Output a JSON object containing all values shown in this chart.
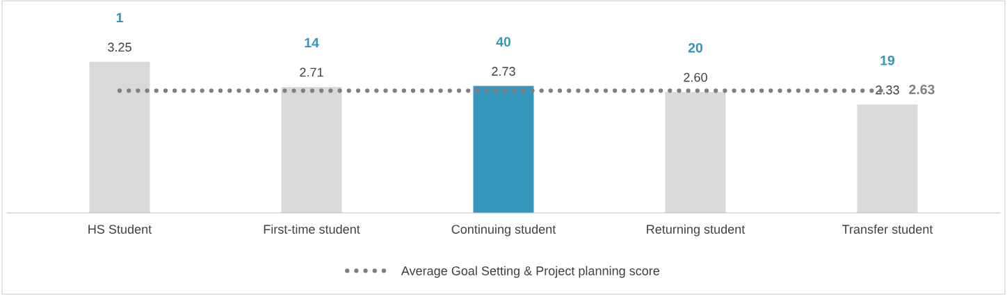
{
  "chart_data": {
    "type": "bar",
    "categories": [
      "HS Student",
      "First-time student",
      "Continuing student",
      "Returning student",
      "Transfer student"
    ],
    "series": [
      {
        "values": [
          3.25,
          2.71,
          2.73,
          2.6,
          2.33
        ],
        "colors": [
          "#d9d9d9",
          "#d9d9d9",
          "#3496bb",
          "#d9d9d9",
          "#d9d9d9"
        ],
        "value_labels": [
          "3.25",
          "2.71",
          "2.73",
          "2.60",
          "2.33"
        ]
      },
      {
        "type": "line",
        "name": "Average Goal Setting & Project planning score",
        "color": "#7f7f7f",
        "values": [
          2.63,
          2.63,
          2.63,
          2.63,
          2.63
        ],
        "line_style": "dotted",
        "value_labels": [
          null,
          null,
          null,
          null,
          "2.63"
        ]
      }
    ],
    "annotations": [
      {
        "text": "1",
        "x": "HS Student",
        "y": 3.25
      },
      {
        "text": "14",
        "x": "First-time student",
        "y": 2.71
      },
      {
        "text": "40",
        "x": "Continuing student",
        "y": 2.73
      },
      {
        "text": "20",
        "x": "Returning student",
        "y": 2.6
      },
      {
        "text": "19",
        "x": "Transfer student",
        "y": 2.33
      }
    ],
    "legend": "bottom",
    "grid": false
  }
}
